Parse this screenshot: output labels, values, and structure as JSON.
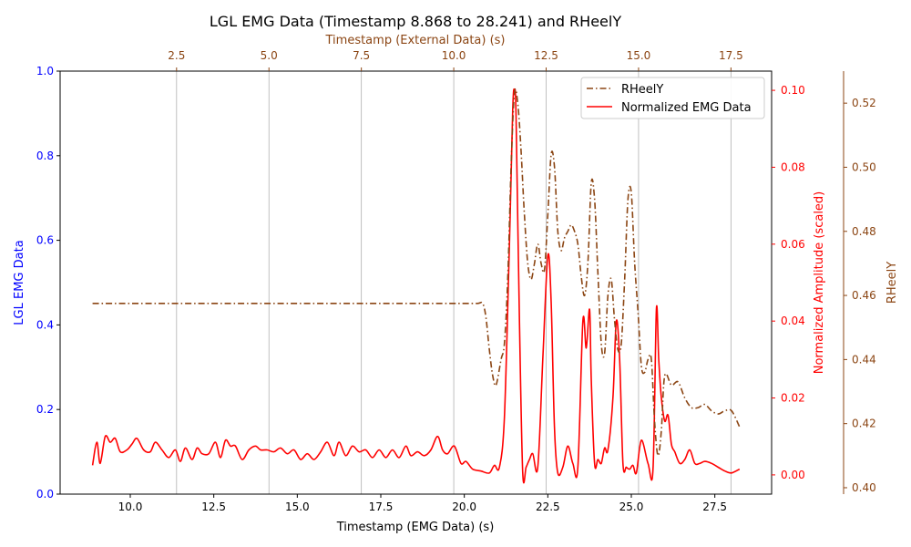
{
  "chart_data": {
    "type": "line",
    "title": "LGL EMG Data (Timestamp 8.868 to 28.241) and RHeelY",
    "colors": {
      "left_axis": "#0000ff",
      "emg": "#ff0000",
      "rheely": "#8b4513",
      "grid": "#b0b0b0"
    },
    "x_bottom": {
      "label": "Timestamp (EMG Data) (s)",
      "range": [
        7.9,
        29.2
      ],
      "ticks": [
        "10.0",
        "12.5",
        "15.0",
        "17.5",
        "20.0",
        "22.5",
        "25.0",
        "27.5"
      ]
    },
    "x_top": {
      "label": "Timestamp (External Data) (s)",
      "range": [
        -0.65,
        18.6
      ],
      "ticks": [
        "2.5",
        "5.0",
        "7.5",
        "10.0",
        "12.5",
        "15.0",
        "17.5"
      ]
    },
    "y_left": {
      "label": "LGL EMG Data",
      "range": [
        0,
        1
      ],
      "ticks": [
        "0.0",
        "0.2",
        "0.4",
        "0.6",
        "0.8",
        "1.0"
      ]
    },
    "y_right_1": {
      "label": "Normalized Amplitude (scaled)",
      "range": [
        -0.005,
        0.105
      ],
      "ticks": [
        "0.00",
        "0.02",
        "0.04",
        "0.06",
        "0.08",
        "0.10"
      ]
    },
    "y_right_2": {
      "label": "RHeelY",
      "range": [
        0.398,
        0.53
      ],
      "ticks": [
        "0.40",
        "0.42",
        "0.44",
        "0.46",
        "0.48",
        "0.50",
        "0.52"
      ]
    },
    "grid": "vertical lines at top-axis ticks",
    "legend": {
      "position": "top-right",
      "entries": [
        "RHeelY",
        "Normalized EMG Data"
      ]
    },
    "series": [
      {
        "name": "Normalized EMG Data",
        "axis": "y_right_1",
        "x": [
          8.87,
          9.0,
          9.1,
          9.25,
          9.4,
          9.55,
          9.7,
          9.9,
          10.05,
          10.2,
          10.4,
          10.6,
          10.75,
          10.95,
          11.15,
          11.35,
          11.5,
          11.65,
          11.85,
          12.0,
          12.15,
          12.35,
          12.55,
          12.7,
          12.85,
          13.0,
          13.15,
          13.35,
          13.55,
          13.75,
          13.9,
          14.1,
          14.3,
          14.5,
          14.7,
          14.9,
          15.1,
          15.3,
          15.5,
          15.7,
          15.9,
          16.1,
          16.25,
          16.45,
          16.65,
          16.85,
          17.05,
          17.25,
          17.45,
          17.65,
          17.85,
          18.05,
          18.25,
          18.4,
          18.6,
          18.8,
          19.0,
          19.2,
          19.35,
          19.5,
          19.7,
          19.9,
          20.05,
          20.25,
          20.5,
          20.75,
          20.9,
          21.05,
          21.2,
          21.35,
          21.45,
          21.5,
          21.55,
          21.65,
          21.75,
          21.85,
          21.95,
          22.05,
          22.2,
          22.35,
          22.5,
          22.6,
          22.7,
          22.8,
          22.95,
          23.1,
          23.25,
          23.4,
          23.55,
          23.65,
          23.75,
          23.8,
          23.9,
          24.0,
          24.1,
          24.2,
          24.3,
          24.45,
          24.55,
          24.65,
          24.75,
          24.85,
          24.95,
          25.05,
          25.15,
          25.3,
          25.5,
          25.65,
          25.75,
          25.82,
          25.9,
          26.0,
          26.1,
          26.2,
          26.3,
          26.45,
          26.6,
          26.75,
          26.9,
          27.05,
          27.2,
          27.4,
          27.6,
          27.8,
          28.0,
          28.24
        ],
        "values": [
          0.0025,
          0.0085,
          0.003,
          0.01,
          0.0085,
          0.0095,
          0.006,
          0.0065,
          0.008,
          0.0095,
          0.0065,
          0.006,
          0.0085,
          0.0065,
          0.0045,
          0.0065,
          0.0035,
          0.007,
          0.004,
          0.007,
          0.0055,
          0.0055,
          0.0085,
          0.0045,
          0.009,
          0.0075,
          0.0075,
          0.004,
          0.0065,
          0.0075,
          0.0065,
          0.0065,
          0.006,
          0.007,
          0.0055,
          0.0065,
          0.004,
          0.0055,
          0.004,
          0.006,
          0.0085,
          0.005,
          0.0085,
          0.005,
          0.0075,
          0.006,
          0.0065,
          0.0045,
          0.0065,
          0.0045,
          0.0065,
          0.0045,
          0.0075,
          0.005,
          0.006,
          0.005,
          0.0065,
          0.01,
          0.0065,
          0.0055,
          0.0075,
          0.003,
          0.0035,
          0.0015,
          0.001,
          0.0005,
          0.0025,
          0.002,
          0.015,
          0.06,
          0.095,
          0.1,
          0.093,
          0.04,
          0.0005,
          0.002,
          0.004,
          0.0055,
          0.002,
          0.03,
          0.057,
          0.045,
          0.012,
          0.0005,
          0.002,
          0.0075,
          0.003,
          0.002,
          0.04,
          0.033,
          0.043,
          0.025,
          0.003,
          0.004,
          0.003,
          0.007,
          0.0065,
          0.02,
          0.04,
          0.03,
          0.003,
          0.002,
          0.0015,
          0.0025,
          0.0005,
          0.009,
          0.003,
          0.0015,
          0.043,
          0.03,
          0.02,
          0.014,
          0.0155,
          0.008,
          0.006,
          0.003,
          0.004,
          0.0065,
          0.003,
          0.003,
          0.0035,
          0.003,
          0.002,
          0.001,
          0.0005,
          0.0015
        ]
      },
      {
        "name": "RHeelY",
        "axis": "y_right_2",
        "x": [
          8.87,
          10.0,
          12.0,
          14.0,
          16.0,
          18.0,
          20.0,
          20.4,
          20.55,
          20.65,
          20.75,
          20.85,
          20.95,
          21.1,
          21.2,
          21.3,
          21.4,
          21.5,
          21.6,
          21.7,
          21.8,
          21.9,
          22.0,
          22.1,
          22.2,
          22.3,
          22.4,
          22.5,
          22.6,
          22.7,
          22.8,
          22.9,
          23.0,
          23.1,
          23.2,
          23.3,
          23.4,
          23.5,
          23.6,
          23.7,
          23.8,
          23.9,
          24.0,
          24.1,
          24.2,
          24.3,
          24.4,
          24.5,
          24.6,
          24.7,
          24.8,
          24.9,
          25.0,
          25.1,
          25.2,
          25.3,
          25.4,
          25.5,
          25.6,
          25.7,
          25.8,
          25.9,
          26.0,
          26.2,
          26.4,
          26.6,
          26.8,
          27.0,
          27.2,
          27.4,
          27.6,
          27.8,
          28.0,
          28.24
        ],
        "values": [
          0.4575,
          0.4575,
          0.4575,
          0.4575,
          0.4575,
          0.4575,
          0.4575,
          0.4575,
          0.4575,
          0.453,
          0.443,
          0.435,
          0.432,
          0.44,
          0.445,
          0.465,
          0.5,
          0.523,
          0.52,
          0.505,
          0.485,
          0.47,
          0.465,
          0.47,
          0.476,
          0.47,
          0.468,
          0.485,
          0.504,
          0.5,
          0.48,
          0.474,
          0.478,
          0.48,
          0.482,
          0.48,
          0.476,
          0.466,
          0.46,
          0.47,
          0.495,
          0.49,
          0.467,
          0.445,
          0.442,
          0.46,
          0.465,
          0.452,
          0.443,
          0.445,
          0.465,
          0.49,
          0.492,
          0.47,
          0.455,
          0.438,
          0.436,
          0.44,
          0.44,
          0.42,
          0.41,
          0.418,
          0.435,
          0.432,
          0.433,
          0.428,
          0.425,
          0.425,
          0.426,
          0.424,
          0.423,
          0.424,
          0.424,
          0.419
        ]
      }
    ]
  }
}
